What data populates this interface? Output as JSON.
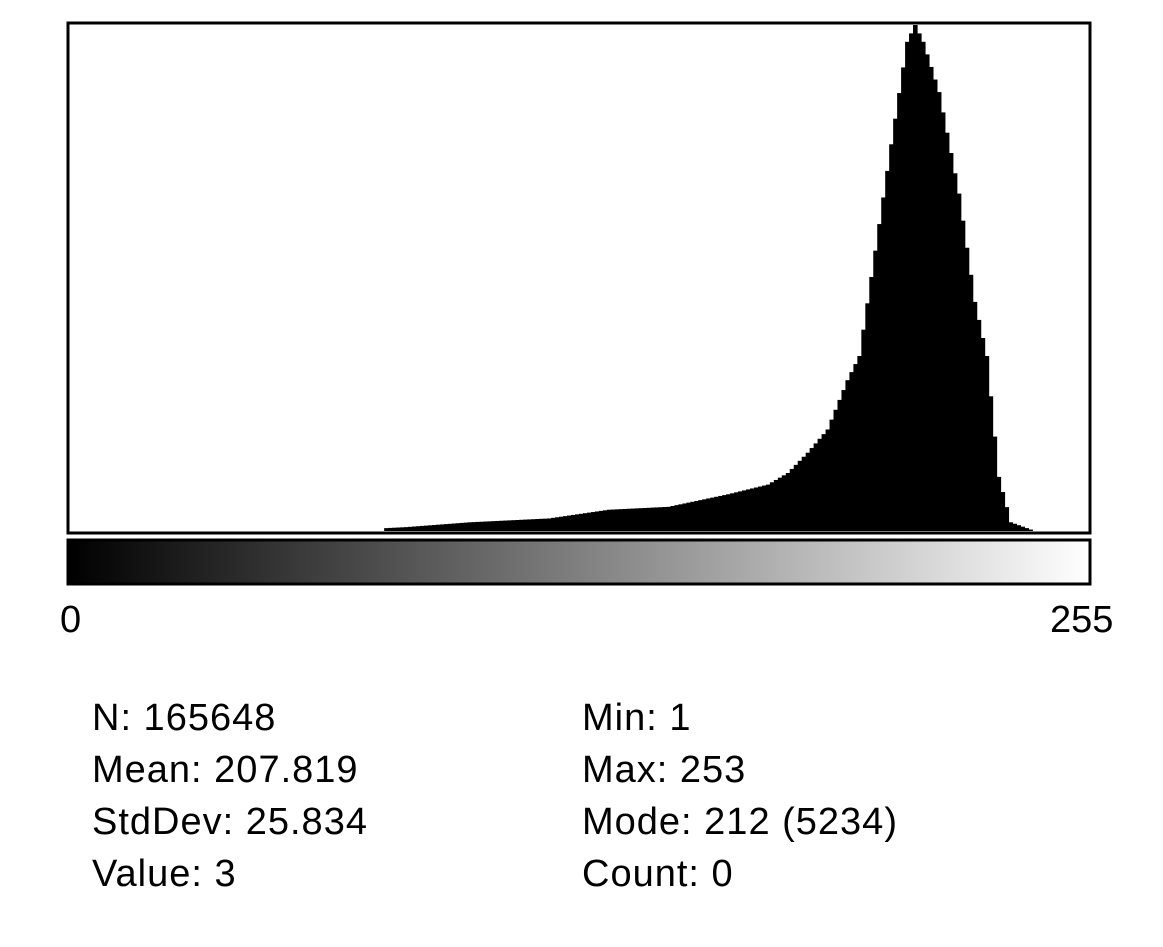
{
  "chart_data": {
    "type": "area",
    "x_range": [
      0,
      255
    ],
    "axis_labels": {
      "min": "0",
      "max": "255"
    },
    "y_max": 5234,
    "points": [
      [
        0,
        0
      ],
      [
        78,
        0
      ],
      [
        79,
        30
      ],
      [
        84,
        40
      ],
      [
        100,
        90
      ],
      [
        120,
        130
      ],
      [
        135,
        220
      ],
      [
        150,
        250
      ],
      [
        165,
        380
      ],
      [
        175,
        480
      ],
      [
        180,
        600
      ],
      [
        185,
        810
      ],
      [
        190,
        1050
      ],
      [
        195,
        1560
      ],
      [
        198,
        1810
      ],
      [
        202,
        2900
      ],
      [
        206,
        4000
      ],
      [
        210,
        5060
      ],
      [
        212,
        5234
      ],
      [
        214,
        5060
      ],
      [
        218,
        4540
      ],
      [
        223,
        3490
      ],
      [
        227,
        2370
      ],
      [
        230,
        1810
      ],
      [
        233,
        560
      ],
      [
        236,
        90
      ],
      [
        242,
        0
      ],
      [
        255,
        0
      ]
    ]
  },
  "stats": {
    "left": [
      "N: 165648",
      "Mean: 207.819",
      "StdDev: 25.834",
      "Value: 3"
    ],
    "right": [
      "Min: 1",
      "Max: 253",
      "Mode: 212 (5234)",
      "Count: 0"
    ]
  }
}
